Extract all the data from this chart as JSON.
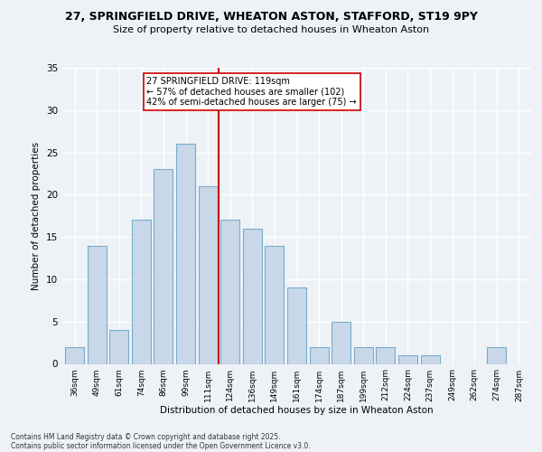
{
  "title1": "27, SPRINGFIELD DRIVE, WHEATON ASTON, STAFFORD, ST19 9PY",
  "title2": "Size of property relative to detached houses in Wheaton Aston",
  "xlabel": "Distribution of detached houses by size in Wheaton Aston",
  "ylabel": "Number of detached properties",
  "bin_labels": [
    "36sqm",
    "49sqm",
    "61sqm",
    "74sqm",
    "86sqm",
    "99sqm",
    "111sqm",
    "124sqm",
    "136sqm",
    "149sqm",
    "161sqm",
    "174sqm",
    "187sqm",
    "199sqm",
    "212sqm",
    "224sqm",
    "237sqm",
    "249sqm",
    "262sqm",
    "274sqm",
    "287sqm"
  ],
  "bar_values": [
    2,
    14,
    4,
    17,
    23,
    26,
    21,
    17,
    16,
    14,
    9,
    2,
    5,
    2,
    2,
    1,
    1,
    0,
    0,
    2,
    0
  ],
  "bar_color": "#c8d8e8",
  "bar_edge_color": "#7aabca",
  "vline_color": "#cc0000",
  "annotation_title": "27 SPRINGFIELD DRIVE: 119sqm",
  "annotation_line1": "← 57% of detached houses are smaller (102)",
  "annotation_line2": "42% of semi-detached houses are larger (75) →",
  "ylim": [
    0,
    35
  ],
  "yticks": [
    0,
    5,
    10,
    15,
    20,
    25,
    30,
    35
  ],
  "bg_color": "#eef2f7",
  "grid_color": "#ffffff",
  "footer1": "Contains HM Land Registry data © Crown copyright and database right 2025.",
  "footer2": "Contains public sector information licensed under the Open Government Licence v3.0."
}
